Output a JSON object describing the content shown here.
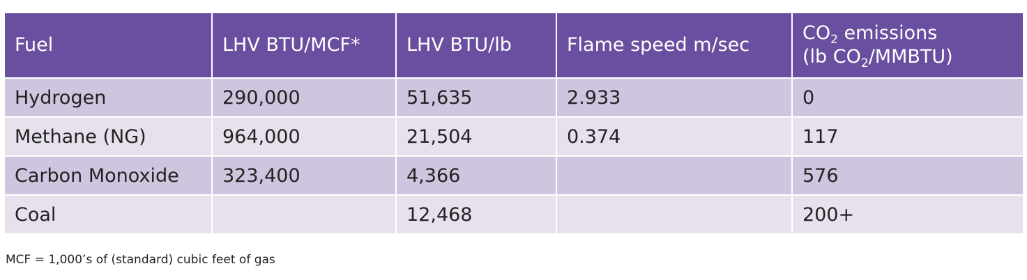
{
  "table": {
    "header": [
      "Fuel",
      "LHV BTU/MCF*",
      "LHV BTU/lb",
      "Flame speed m/sec",
      [
        "CO",
        "2",
        " emissions",
        "(lb CO",
        "2",
        "/MMBTU)"
      ]
    ],
    "rows": [
      [
        "Hydrogen",
        "290,000",
        "51,635",
        "2.933",
        "0"
      ],
      [
        "Methane (NG)",
        "964,000",
        "21,504",
        "0.374",
        "117"
      ],
      [
        "Carbon Monoxide",
        "323,400",
        "4,366",
        null,
        "576"
      ],
      [
        "Coal",
        null,
        "12,468",
        null,
        "200+"
      ]
    ]
  },
  "footnote": "MCF = 1,000’s of (standard) cubic feet of gas"
}
